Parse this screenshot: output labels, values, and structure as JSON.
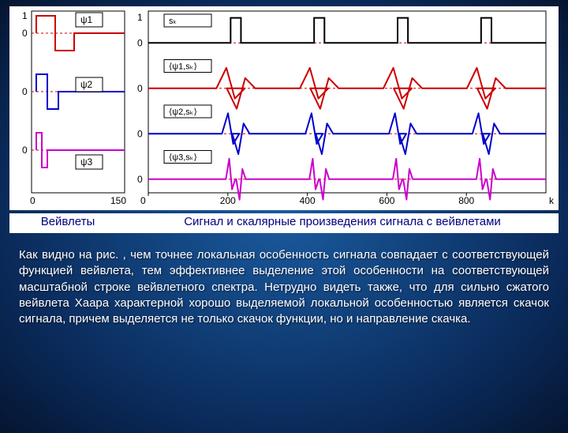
{
  "left_caption": "Вейвлеты",
  "right_caption": "Сигнал и скалярные произведения сигнала с вейвлетами",
  "paragraph": "Как видно на рис. , чем точнее локальная особенность сигнала совпадает с соответствующей функцией вейвлета, тем эффективнее выделение этой особенности на соответствующей масштабной строке вейвлетного спектра. Нетрудно видеть также, что для сильно сжатого вейвлета Хаара характерной хорошо выделяемой локальной особенностью является скачок сигнала, причем выделяется не только скачок функции, но и направление скачка.",
  "left_chart": {
    "x_range": [
      0,
      150
    ],
    "y_panels": 3,
    "labels": [
      "ψ1",
      "ψ2",
      "ψ3"
    ],
    "colors": {
      "psi1": "#cc0000",
      "psi2": "#0000cc",
      "psi3": "#cc00cc",
      "axis": "#000000",
      "zero_dash": "#cc0000",
      "label_box_border": "#000000"
    },
    "axis_ticks_x": [
      0,
      150
    ],
    "axis_ticks_y": [
      "0",
      "0",
      "0",
      "0",
      "1"
    ]
  },
  "right_chart": {
    "x_range": [
      0,
      1000
    ],
    "x_ticks": [
      0,
      200,
      400,
      600,
      800
    ],
    "x_label": "k",
    "panels": [
      {
        "name": "sk",
        "label": "sₖ",
        "color": "#000000"
      },
      {
        "name": "psi1_sk",
        "label": "⟨ψ1,sₖ⟩",
        "color": "#cc0000"
      },
      {
        "name": "psi2_sk",
        "label": "⟨ψ2,sₖ⟩",
        "color": "#0000cc"
      },
      {
        "name": "psi3_sk",
        "label": "⟨ψ3,sₖ⟩",
        "color": "#cc00cc"
      }
    ],
    "pulse_centers": [
      220,
      430,
      640,
      850
    ],
    "pulse_width": 26,
    "colors": {
      "axis": "#000000",
      "zero_dash": "#cc0000",
      "grid": "#d0d0d0"
    }
  },
  "line_width": 2
}
